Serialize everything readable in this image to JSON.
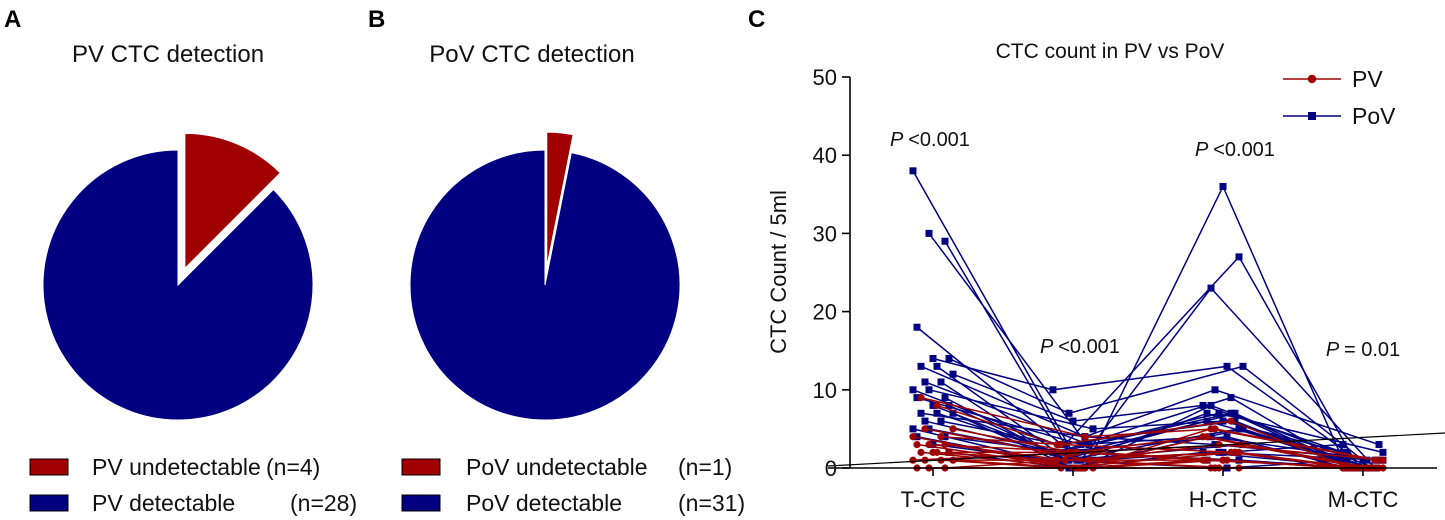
{
  "colors": {
    "red": "#a00000",
    "blue": "#000080",
    "axis": "#000000"
  },
  "panels": {
    "a": "A",
    "b": "B",
    "c": "C"
  },
  "chart_data": [
    {
      "type": "pie",
      "title": "PV CTC detection",
      "slices": [
        {
          "label": "PV undetectable",
          "count": "(n=4)",
          "value": 4,
          "color": "#a00000",
          "exploded": true
        },
        {
          "label": "PV detectable",
          "count": "(n=28)",
          "value": 28,
          "color": "#000080",
          "exploded": false
        }
      ]
    },
    {
      "type": "pie",
      "title": "PoV CTC detection",
      "slices": [
        {
          "label": "PoV undetectable",
          "count": "(n=1)",
          "value": 1,
          "color": "#a00000",
          "exploded": true
        },
        {
          "label": "PoV detectable",
          "count": "(n=31)",
          "value": 31,
          "color": "#000080",
          "exploded": false
        }
      ]
    },
    {
      "type": "line",
      "title": "CTC count in PV vs PoV",
      "ylabel": "CTC Count / 5ml",
      "xlabel": "",
      "categories": [
        "T-CTC",
        "E-CTC",
        "H-CTC",
        "M-CTC"
      ],
      "ylim": [
        0,
        50
      ],
      "yticks": [
        0,
        10,
        20,
        30,
        40,
        50
      ],
      "legend": [
        {
          "name": "PV",
          "color": "#a00000",
          "marker": "circle"
        },
        {
          "name": "PoV",
          "color": "#000080",
          "marker": "square"
        }
      ],
      "pvalues": [
        {
          "category": "T-CTC",
          "p": "P",
          "op": "<",
          "val": "0.001"
        },
        {
          "category": "E-CTC",
          "p": "P",
          "op": "<",
          "val": "0.001"
        },
        {
          "category": "H-CTC",
          "p": "P",
          "op": "<",
          "val": "0.001"
        },
        {
          "category": "M-CTC",
          "p": "P",
          "op": "=",
          "val": "0.01"
        }
      ],
      "series": [
        {
          "name": "PoV",
          "values": [
            38,
            1,
            7,
            0
          ]
        },
        {
          "name": "PoV",
          "values": [
            30,
            2,
            36,
            1
          ]
        },
        {
          "name": "PoV",
          "values": [
            29,
            3,
            27,
            0
          ]
        },
        {
          "name": "PoV",
          "values": [
            18,
            1,
            23,
            0
          ]
        },
        {
          "name": "PoV",
          "values": [
            14,
            10,
            13,
            2
          ]
        },
        {
          "name": "PoV",
          "values": [
            14,
            7,
            13,
            1
          ]
        },
        {
          "name": "PoV",
          "values": [
            13,
            4,
            10,
            3
          ]
        },
        {
          "name": "PoV",
          "values": [
            13,
            2,
            9,
            0
          ]
        },
        {
          "name": "PoV",
          "values": [
            12,
            6,
            8,
            1
          ]
        },
        {
          "name": "PoV",
          "values": [
            11,
            3,
            7,
            2
          ]
        },
        {
          "name": "PoV",
          "values": [
            11,
            1,
            7,
            0
          ]
        },
        {
          "name": "PoV",
          "values": [
            10,
            2,
            6,
            0
          ]
        },
        {
          "name": "PoV",
          "values": [
            10,
            5,
            6,
            2
          ]
        },
        {
          "name": "PoV",
          "values": [
            9,
            1,
            5,
            0
          ]
        },
        {
          "name": "PoV",
          "values": [
            9,
            3,
            4,
            1
          ]
        },
        {
          "name": "PoV",
          "values": [
            8,
            2,
            4,
            0
          ]
        },
        {
          "name": "PoV",
          "values": [
            8,
            1,
            3,
            0
          ]
        },
        {
          "name": "PoV",
          "values": [
            7,
            4,
            3,
            1
          ]
        },
        {
          "name": "PoV",
          "values": [
            7,
            2,
            7,
            0
          ]
        },
        {
          "name": "PoV",
          "values": [
            7,
            0,
            2,
            0
          ]
        },
        {
          "name": "PoV",
          "values": [
            6,
            1,
            2,
            1
          ]
        },
        {
          "name": "PoV",
          "values": [
            6,
            3,
            6,
            0
          ]
        },
        {
          "name": "PoV",
          "values": [
            5,
            0,
            1,
            0
          ]
        },
        {
          "name": "PoV",
          "values": [
            5,
            1,
            2,
            3
          ]
        },
        {
          "name": "PoV",
          "values": [
            4,
            2,
            1,
            0
          ]
        },
        {
          "name": "PoV",
          "values": [
            4,
            0,
            8,
            0
          ]
        },
        {
          "name": "PoV",
          "values": [
            3,
            1,
            0,
            1
          ]
        },
        {
          "name": "PoV",
          "values": [
            2,
            0,
            5,
            0
          ]
        },
        {
          "name": "PV",
          "values": [
            9,
            4,
            5,
            1
          ]
        },
        {
          "name": "PV",
          "values": [
            8,
            3,
            6,
            0
          ]
        },
        {
          "name": "PV",
          "values": [
            5,
            2,
            4,
            0
          ]
        },
        {
          "name": "PV",
          "values": [
            5,
            1,
            3,
            1
          ]
        },
        {
          "name": "PV",
          "values": [
            4,
            3,
            2,
            0
          ]
        },
        {
          "name": "PV",
          "values": [
            4,
            0,
            4,
            0
          ]
        },
        {
          "name": "PV",
          "values": [
            3,
            2,
            1,
            0
          ]
        },
        {
          "name": "PV",
          "values": [
            3,
            1,
            2,
            0
          ]
        },
        {
          "name": "PV",
          "values": [
            3,
            0,
            5,
            1
          ]
        },
        {
          "name": "PV",
          "values": [
            2,
            1,
            1,
            0
          ]
        },
        {
          "name": "PV",
          "values": [
            2,
            2,
            3,
            0
          ]
        },
        {
          "name": "PV",
          "values": [
            2,
            0,
            0,
            0
          ]
        },
        {
          "name": "PV",
          "values": [
            2,
            1,
            2,
            0
          ]
        },
        {
          "name": "PV",
          "values": [
            1,
            0,
            1,
            0
          ]
        },
        {
          "name": "PV",
          "values": [
            1,
            1,
            0,
            0
          ]
        },
        {
          "name": "PV",
          "values": [
            1,
            0,
            2,
            0
          ]
        },
        {
          "name": "PV",
          "values": [
            1,
            2,
            1,
            0
          ]
        },
        {
          "name": "PV",
          "values": [
            0,
            0,
            1,
            0
          ]
        },
        {
          "name": "PV",
          "values": [
            0,
            1,
            0,
            0
          ]
        },
        {
          "name": "PV",
          "values": [
            0,
            0,
            0,
            0
          ]
        }
      ]
    }
  ]
}
